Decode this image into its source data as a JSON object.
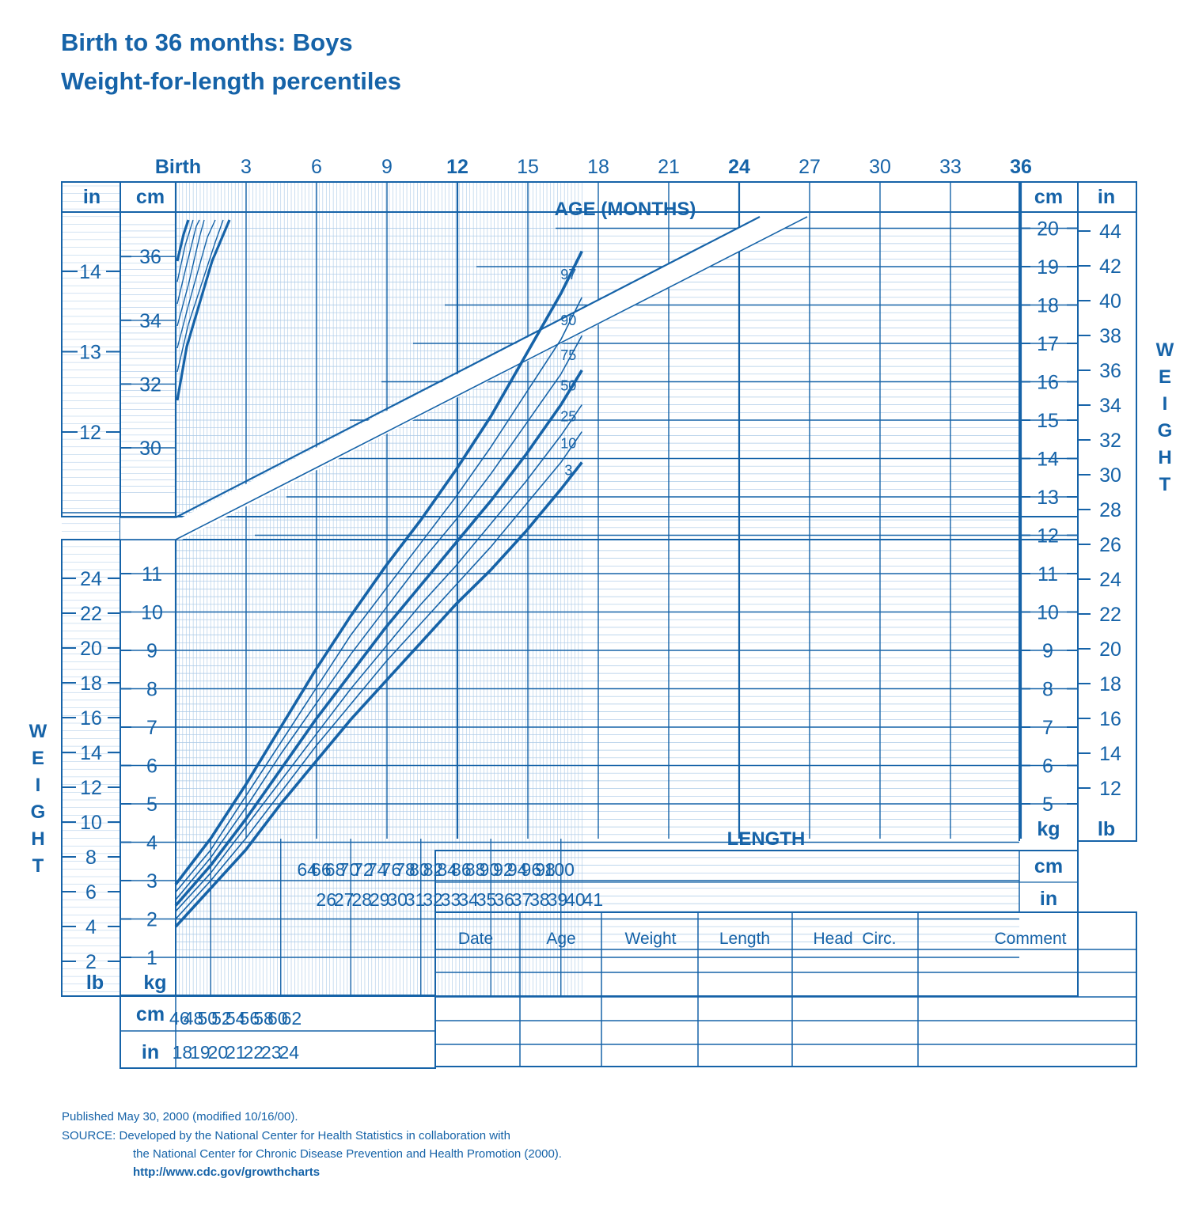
{
  "header": {
    "title_line1": "Birth to 36 months: Boys",
    "title_line2": "Weight-for-length percentiles"
  },
  "colors": {
    "primary": "#1663a8",
    "grid_light": "#a9c8e6",
    "background": "#ffffff"
  },
  "axes": {
    "age_label": "AGE (MONTHS)",
    "age_ticks": [
      "Birth",
      "3",
      "6",
      "9",
      "12",
      "15",
      "18",
      "21",
      "24",
      "27",
      "30",
      "33",
      "36"
    ],
    "age_bold_ticks": [
      "Birth",
      "12",
      "24",
      "36"
    ],
    "length_label": "LENGTH",
    "weight_label_letters": [
      "W",
      "E",
      "I",
      "G",
      "H",
      "T"
    ],
    "unit_cm": "cm",
    "unit_in": "in",
    "unit_kg": "kg",
    "unit_lb": "lb",
    "head_cm_ticks": [
      "30",
      "32",
      "34",
      "36"
    ],
    "head_in_ticks": [
      "12",
      "13",
      "14"
    ],
    "weight_kg_left_ticks": [
      "1",
      "2",
      "3",
      "4",
      "5",
      "6",
      "7",
      "8",
      "9",
      "10",
      "11"
    ],
    "weight_lb_left_ticks": [
      "2",
      "4",
      "6",
      "8",
      "10",
      "12",
      "14",
      "16",
      "18",
      "20",
      "22",
      "24"
    ],
    "weight_kg_right_ticks": [
      "5",
      "6",
      "7",
      "8",
      "9",
      "10",
      "11",
      "12",
      "13",
      "14",
      "15",
      "16",
      "17",
      "18",
      "19",
      "20"
    ],
    "weight_lb_right_ticks": [
      "12",
      "14",
      "16",
      "18",
      "20",
      "22",
      "24",
      "26",
      "28",
      "30",
      "32",
      "34",
      "36",
      "38",
      "40",
      "42",
      "44"
    ],
    "length_cm_ticks_lower": [
      "46",
      "48",
      "50",
      "52",
      "54",
      "56",
      "58",
      "60",
      "62"
    ],
    "length_in_ticks_lower": [
      "18",
      "19",
      "20",
      "21",
      "22",
      "23",
      "24"
    ],
    "length_cm_ticks_upper": [
      "64",
      "66",
      "68",
      "70",
      "72",
      "74",
      "76",
      "78",
      "80",
      "82",
      "84",
      "86",
      "88",
      "90",
      "92",
      "94",
      "96",
      "98",
      "100"
    ],
    "length_in_ticks_upper": [
      "26",
      "27",
      "28",
      "29",
      "30",
      "31",
      "32",
      "33",
      "34",
      "35",
      "36",
      "37",
      "38",
      "39",
      "40",
      "41"
    ]
  },
  "record_table": {
    "headers": [
      "Date",
      "Age",
      "Weight",
      "Length",
      "Head  Circ.",
      "Comment"
    ]
  },
  "chart_data": {
    "type": "line",
    "title": "Birth to 36 months: Boys Weight-for-length percentiles",
    "xlabel": "LENGTH",
    "ylabel": "WEIGHT",
    "x_unit": "cm",
    "y_unit": "kg",
    "xlim": [
      45,
      103
    ],
    "ylim": [
      1,
      20
    ],
    "grid": true,
    "x": [
      45,
      50,
      55,
      60,
      65,
      70,
      75,
      80,
      85,
      90,
      95,
      100,
      103
    ],
    "series": [
      {
        "name": "97",
        "weight": "bold",
        "values": [
          2.9,
          4.1,
          5.5,
          7.0,
          8.5,
          9.9,
          11.2,
          12.4,
          13.7,
          15.1,
          16.7,
          18.3,
          19.4
        ]
      },
      {
        "name": "90",
        "weight": "thin",
        "values": [
          2.7,
          3.8,
          5.2,
          6.6,
          8.0,
          9.4,
          10.6,
          11.8,
          13.0,
          14.3,
          15.7,
          17.1,
          18.2
        ]
      },
      {
        "name": "75",
        "weight": "thin",
        "values": [
          2.5,
          3.6,
          4.9,
          6.3,
          7.6,
          8.9,
          10.1,
          11.3,
          12.4,
          13.6,
          14.9,
          16.2,
          17.2
        ]
      },
      {
        "name": "50",
        "weight": "bold",
        "values": [
          2.35,
          3.4,
          4.6,
          5.9,
          7.2,
          8.4,
          9.6,
          10.7,
          11.8,
          12.9,
          14.1,
          15.4,
          16.3
        ]
      },
      {
        "name": "25",
        "weight": "thin",
        "values": [
          2.2,
          3.2,
          4.4,
          5.6,
          6.8,
          8.0,
          9.1,
          10.2,
          11.2,
          12.3,
          13.4,
          14.6,
          15.4
        ]
      },
      {
        "name": "10",
        "weight": "thin",
        "values": [
          2.0,
          3.0,
          4.1,
          5.3,
          6.5,
          7.6,
          8.7,
          9.7,
          10.7,
          11.7,
          12.8,
          13.9,
          14.7
        ]
      },
      {
        "name": "3",
        "weight": "bold",
        "values": [
          1.8,
          2.8,
          3.8,
          5.0,
          6.1,
          7.2,
          8.2,
          9.2,
          10.2,
          11.1,
          12.1,
          13.2,
          13.9
        ]
      }
    ]
  },
  "footer": {
    "published": "Published May 30, 2000 (modified 10/16/00).",
    "source_line1": "SOURCE: Developed by the National Center for Health Statistics in collaboration with",
    "source_line2": "the National Center for Chronic Disease Prevention and Health Promotion (2000).",
    "url": "http://www.cdc.gov/growthcharts"
  }
}
